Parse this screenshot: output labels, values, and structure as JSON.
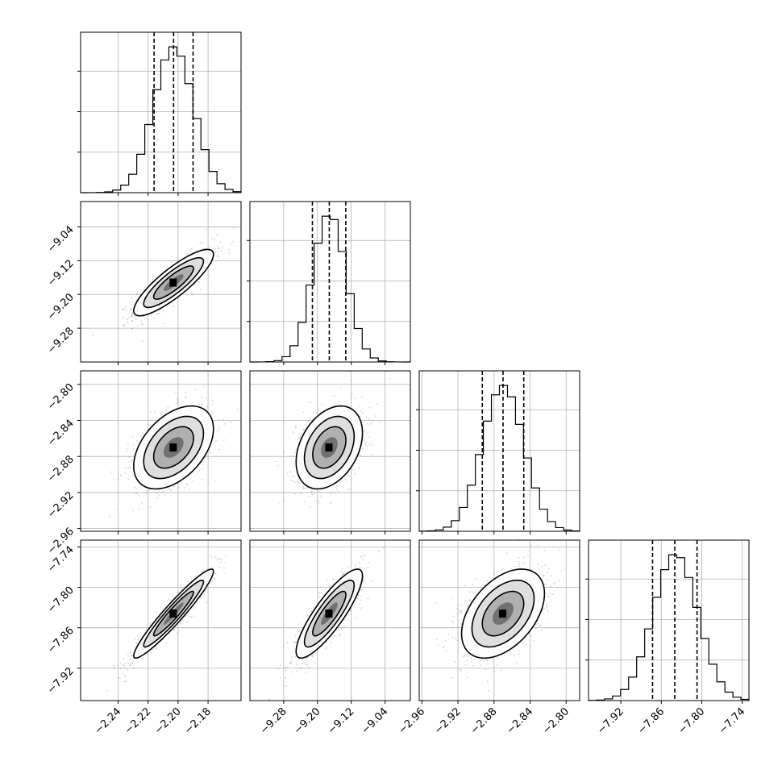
{
  "chart_data": {
    "type": "corner",
    "parameters": [
      {
        "mean": -2.203,
        "sd": 0.0133,
        "range": [
          -2.265,
          -2.158
        ],
        "ticks": [
          "−2.24",
          "−2.22",
          "−2.20",
          "−2.18"
        ],
        "quantiles": [
          -2.216,
          -2.203,
          -2.19
        ]
      },
      {
        "mean": -9.172,
        "sd": 0.0393,
        "range": [
          -9.36,
          -8.98
        ],
        "ticks": [
          "−9.28",
          "−9.20",
          "−9.12",
          "−9.04"
        ],
        "quantiles": [
          -9.212,
          -9.172,
          -9.133
        ]
      },
      {
        "mean": -2.87,
        "sd": 0.023,
        "range": [
          -2.963,
          -2.785
        ],
        "ticks": [
          "−2.96",
          "−2.92",
          "−2.88",
          "−2.84",
          "−2.80"
        ],
        "quantiles": [
          -2.893,
          -2.87,
          -2.847
        ]
      },
      {
        "mean": -7.839,
        "sd": 0.033,
        "range": [
          -7.968,
          -7.73
        ],
        "ticks": [
          "−7.92",
          "−7.86",
          "−7.80",
          "−7.74"
        ],
        "quantiles": [
          -7.873,
          -7.84,
          -7.807
        ]
      }
    ],
    "correlations": [
      [
        1.0,
        0.85,
        0.45,
        0.95
      ],
      [
        0.85,
        1.0,
        0.35,
        0.85
      ],
      [
        0.45,
        0.35,
        1.0,
        0.45
      ],
      [
        0.95,
        0.85,
        0.45,
        1.0
      ]
    ],
    "histogram_bins": 20,
    "quantile_levels": [
      0.16,
      0.5,
      0.84
    ],
    "contour_sigma_levels": [
      0.5,
      1.0,
      1.5,
      2.0
    ],
    "grid": true,
    "colors": {
      "line": "#000000",
      "grid": "#b0b0b0",
      "points": "#808080",
      "background": "#ffffff"
    }
  }
}
